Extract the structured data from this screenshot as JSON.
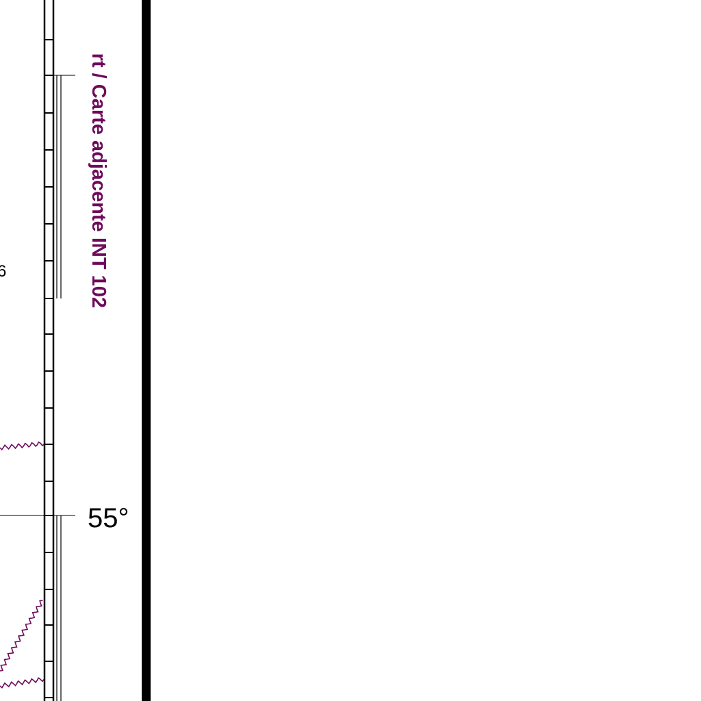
{
  "colors": {
    "ink": "#000000",
    "magenta": "#6e0a5a",
    "paper": "#ffffff"
  },
  "map": {
    "adjacent_chart_label": "rt / Carte adjacente INT 102",
    "latitude_label": "55°",
    "sounding_fragment": "6",
    "features": [
      "neatline-border",
      "graduated-latitude-scale",
      "adjacent-chart-limit",
      "magenta-zigzag-limits"
    ]
  }
}
